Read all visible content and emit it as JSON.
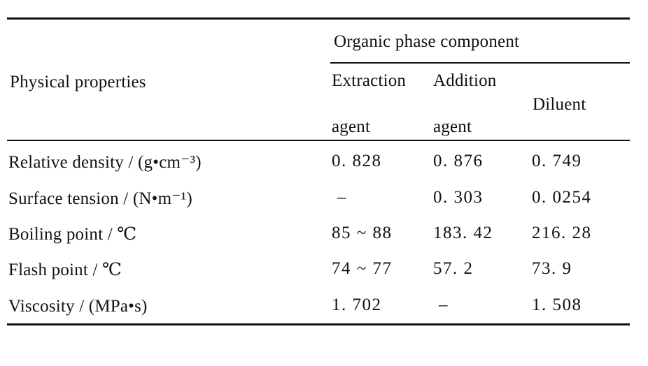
{
  "table": {
    "header": {
      "row_header": "Physical properties",
      "group_header": "Organic phase component",
      "columns": [
        {
          "line1": "Extraction",
          "line2": "agent"
        },
        {
          "line1": "Addition",
          "line2": "agent"
        },
        {
          "line1": "Diluent"
        }
      ]
    },
    "rows": [
      {
        "property": "Relative density / (g•cm⁻³)",
        "values": [
          "0. 828",
          "0. 876",
          "0. 749"
        ]
      },
      {
        "property": "Surface tension / (N•m⁻¹)",
        "values": [
          "–",
          "0. 303",
          "0. 0254"
        ]
      },
      {
        "property": "Boiling point / ℃",
        "values": [
          "85 ~ 88",
          "183. 42",
          "216. 28"
        ]
      },
      {
        "property": "Flash point / ℃",
        "values": [
          "74 ~ 77",
          "57. 2",
          "73. 9"
        ]
      },
      {
        "property": "Viscosity / (MPa•s)",
        "values": [
          "1. 702",
          "–",
          "1. 508"
        ]
      }
    ]
  }
}
